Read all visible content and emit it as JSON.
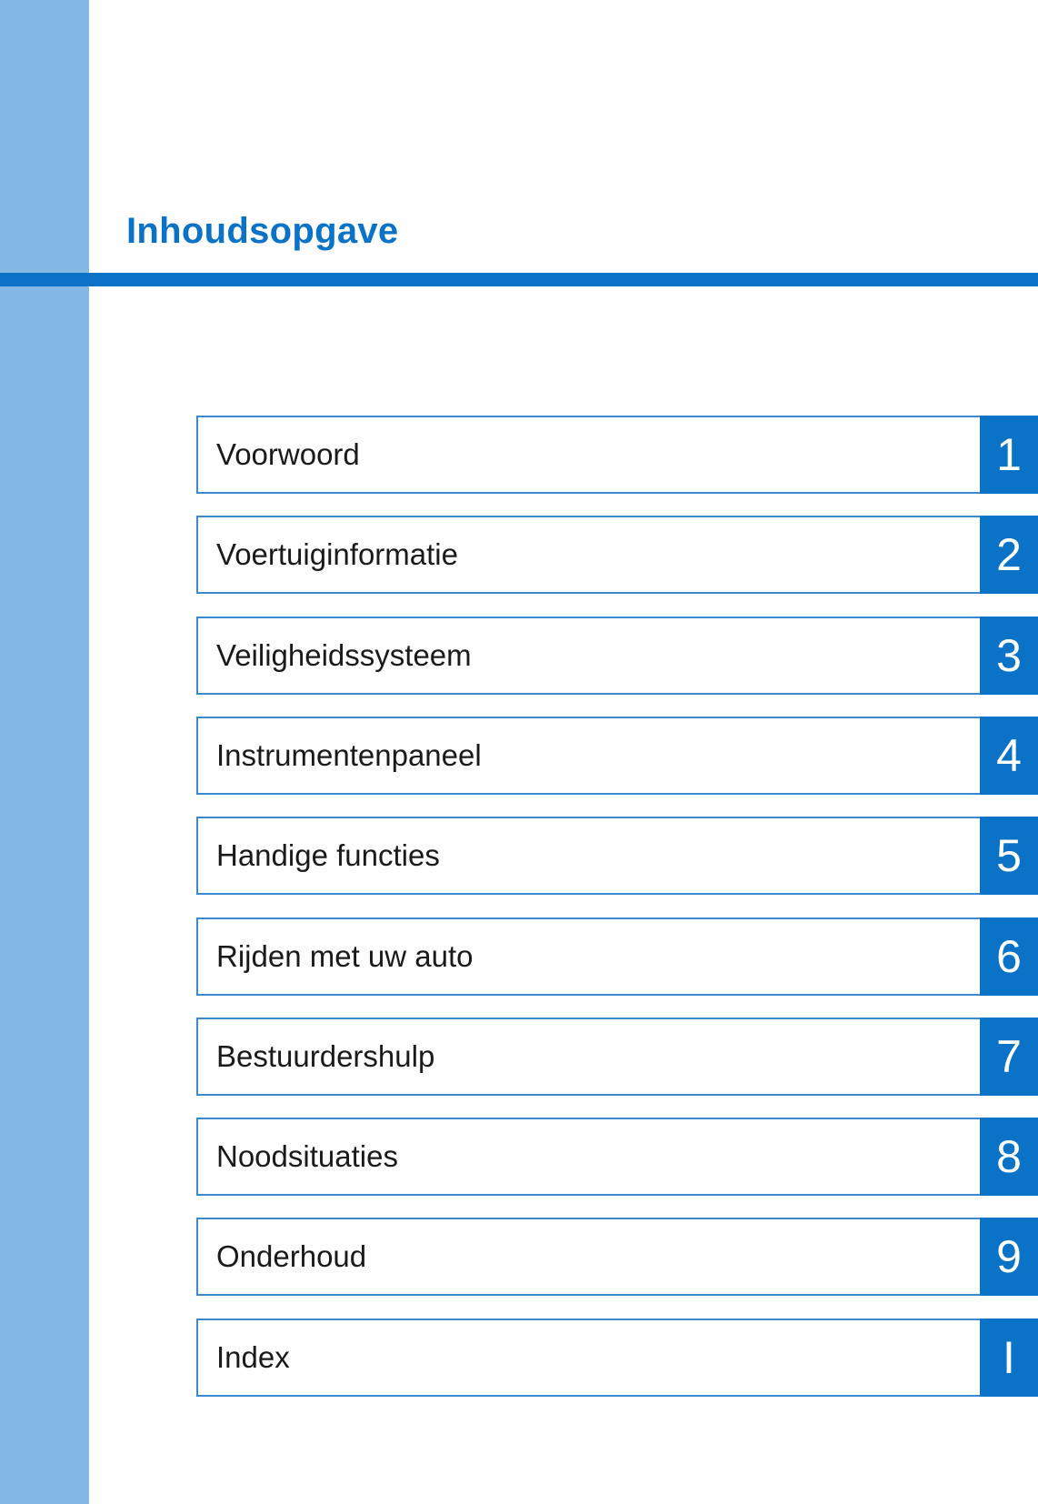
{
  "title": "Inhoudsopgave",
  "colors": {
    "accent": "#0a72c7",
    "sidebar": "#84b9e5"
  },
  "chapters": [
    {
      "label": "Voorwoord",
      "number": "1"
    },
    {
      "label": "Voertuiginformatie",
      "number": "2"
    },
    {
      "label": "Veiligheidssysteem",
      "number": "3"
    },
    {
      "label": "Instrumentenpaneel",
      "number": "4"
    },
    {
      "label": "Handige functies",
      "number": "5"
    },
    {
      "label": "Rijden met uw auto",
      "number": "6"
    },
    {
      "label": "Bestuurdershulp",
      "number": "7"
    },
    {
      "label": "Noodsituaties",
      "number": "8"
    },
    {
      "label": "Onderhoud",
      "number": "9"
    },
    {
      "label": "Index",
      "number": "I"
    }
  ]
}
